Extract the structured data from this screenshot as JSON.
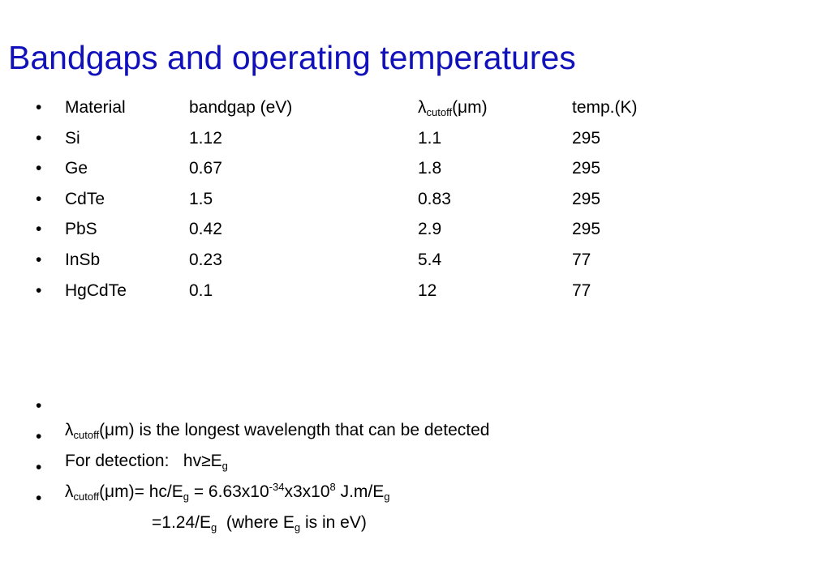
{
  "title": "Bandgaps and operating temperatures",
  "table": {
    "header": {
      "material": "Material",
      "bandgap": "bandgap (eV)",
      "cutoff": [
        "λ",
        "cutoff",
        "(μm)"
      ],
      "temp": "temp.(K)"
    },
    "rows": [
      [
        "Si",
        1.12,
        1.1,
        295
      ],
      [
        "Ge",
        0.67,
        1.8,
        295
      ],
      [
        "CdTe",
        1.5,
        0.83,
        295
      ],
      [
        "PbS",
        0.42,
        2.9,
        295
      ],
      [
        "InSb",
        0.23,
        5.4,
        77
      ],
      [
        "HgCdTe",
        0.1,
        12,
        77
      ]
    ]
  },
  "notes": [
    [
      "λ",
      "cutoff",
      "(μm) is the longest wavelength that can be detected"
    ],
    [
      "For detection:   hv≥E",
      "g"
    ],
    [
      "λ",
      "cutoff",
      "(μm)= hc/E",
      "g",
      " = 6.63x10",
      "-34",
      "x3x10",
      "8",
      " J.m/E",
      "g"
    ],
    [
      "=1.24/E",
      "g",
      "  (where E",
      "g",
      " is in eV)"
    ]
  ]
}
